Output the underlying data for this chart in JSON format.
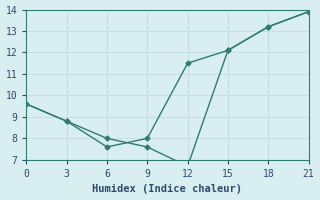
{
  "line1_x": [
    0,
    3,
    6,
    9,
    12,
    15,
    18,
    21
  ],
  "line1_y": [
    9.6,
    8.8,
    7.6,
    8.0,
    11.5,
    12.1,
    13.2,
    13.9
  ],
  "line2_x": [
    0,
    3,
    6,
    9,
    12,
    15,
    18,
    21
  ],
  "line2_y": [
    9.6,
    8.8,
    8.0,
    7.6,
    6.7,
    12.1,
    13.2,
    13.9
  ],
  "line_color": "#2e7d6e",
  "xlabel": "Humidex (Indice chaleur)",
  "ylim": [
    7,
    14
  ],
  "xlim": [
    0,
    21
  ],
  "yticks": [
    7,
    8,
    9,
    10,
    11,
    12,
    13,
    14
  ],
  "xticks": [
    0,
    3,
    6,
    9,
    12,
    15,
    18,
    21
  ],
  "bg_color": "#d8eef0",
  "grid_color": "#c8dde0",
  "spine_color": "#2e7d6e",
  "font_color": "#2e4a6e",
  "xlabel_fontsize": 7.5,
  "tick_fontsize": 7,
  "marker": "D",
  "marker_size": 2.5,
  "line_width": 1.0
}
